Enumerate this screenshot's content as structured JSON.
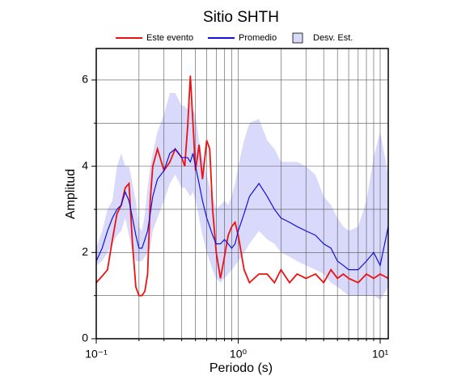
{
  "chart_data": {
    "type": "line",
    "title": "Sitio SHTH",
    "xlabel": "Periodo (s)",
    "ylabel": "Amplitud",
    "xscale": "log",
    "xlim": [
      0.1,
      11.4
    ],
    "ylim": [
      0,
      6.73
    ],
    "xticks": [
      {
        "value": 0.1,
        "label": "10⁻¹"
      },
      {
        "value": 1,
        "label": "10⁰"
      },
      {
        "value": 10,
        "label": "10¹"
      }
    ],
    "minor_xticks": [
      0.2,
      0.3,
      0.4,
      0.5,
      0.6,
      0.7,
      0.8,
      0.9,
      2,
      3,
      4,
      5,
      6,
      7,
      8,
      9
    ],
    "yticks": [
      0,
      2,
      4,
      6
    ],
    "minor_yticks": [
      1,
      3,
      5
    ],
    "grid": true,
    "legend_loc": "top",
    "x": [
      0.1,
      0.11,
      0.12,
      0.13,
      0.14,
      0.15,
      0.16,
      0.17,
      0.18,
      0.19,
      0.2,
      0.21,
      0.22,
      0.23,
      0.24,
      0.25,
      0.27,
      0.3,
      0.33,
      0.36,
      0.4,
      0.42,
      0.44,
      0.46,
      0.48,
      0.5,
      0.53,
      0.56,
      0.6,
      0.63,
      0.66,
      0.7,
      0.75,
      0.8,
      0.85,
      0.9,
      0.95,
      1.0,
      1.1,
      1.2,
      1.4,
      1.6,
      1.8,
      2.0,
      2.3,
      2.6,
      3.0,
      3.5,
      4.0,
      4.5,
      5.0,
      5.5,
      6.0,
      7,
      8,
      9,
      10,
      11.4
    ],
    "band": {
      "name": "Desv. Est.",
      "color": "#d9d9fb",
      "lower": [
        1.7,
        1.8,
        2.0,
        2.2,
        2.4,
        2.5,
        2.8,
        2.4,
        2.0,
        1.8,
        1.8,
        1.8,
        1.9,
        2.0,
        2.1,
        2.5,
        2.8,
        3.2,
        3.6,
        3.8,
        3.5,
        3.5,
        3.4,
        3.3,
        3.4,
        3.2,
        2.8,
        2.4,
        2.0,
        1.8,
        1.6,
        1.4,
        1.3,
        1.4,
        1.5,
        1.6,
        1.7,
        1.8,
        2.0,
        2.2,
        2.5,
        2.3,
        2.2,
        2.0,
        1.9,
        1.8,
        1.7,
        1.6,
        1.5,
        1.3,
        1.2,
        1.1,
        1.0,
        1.0,
        1.0,
        1.0,
        0.9,
        1.2
      ],
      "upper": [
        2.1,
        2.5,
        3.0,
        3.2,
        4.0,
        4.3,
        4.0,
        4.0,
        3.6,
        3.2,
        2.6,
        2.5,
        2.9,
        3.5,
        4.0,
        4.3,
        4.8,
        5.2,
        5.7,
        5.7,
        5.4,
        5.4,
        5.3,
        5.5,
        5.3,
        5.2,
        4.6,
        4.2,
        3.8,
        3.5,
        3.3,
        3.0,
        3.1,
        3.2,
        3.1,
        3.3,
        3.6,
        4.0,
        4.6,
        5.0,
        5.1,
        4.6,
        4.4,
        4.1,
        4.1,
        4.1,
        4.0,
        3.8,
        3.3,
        3.1,
        2.8,
        2.6,
        2.5,
        2.6,
        3.2,
        4.2,
        4.8,
        3.8
      ]
    },
    "series": [
      {
        "name": "Este evento",
        "color": "#ee1111",
        "values": [
          1.3,
          1.45,
          1.6,
          2.3,
          2.9,
          3.1,
          3.5,
          3.6,
          2.2,
          1.2,
          1.0,
          1.0,
          1.1,
          1.5,
          3.2,
          4.0,
          4.4,
          3.9,
          4.1,
          4.4,
          4.2,
          4.0,
          4.9,
          6.1,
          5.0,
          3.9,
          4.5,
          3.7,
          4.6,
          4.4,
          3.0,
          2.0,
          1.4,
          1.9,
          2.4,
          2.6,
          2.7,
          2.4,
          1.6,
          1.3,
          1.5,
          1.5,
          1.3,
          1.6,
          1.3,
          1.5,
          1.4,
          1.5,
          1.3,
          1.6,
          1.4,
          1.5,
          1.4,
          1.3,
          1.5,
          1.4,
          1.5,
          1.4
        ]
      },
      {
        "name": "Promedio",
        "color": "#1111dd",
        "values": [
          1.8,
          2.1,
          2.5,
          2.8,
          3.0,
          3.1,
          3.4,
          3.2,
          2.8,
          2.4,
          2.1,
          2.1,
          2.3,
          2.5,
          2.9,
          3.3,
          3.7,
          3.9,
          4.3,
          4.4,
          4.2,
          4.2,
          4.2,
          4.1,
          4.3,
          4.0,
          3.6,
          3.2,
          2.8,
          2.6,
          2.4,
          2.2,
          2.2,
          2.3,
          2.2,
          2.1,
          2.2,
          2.5,
          2.9,
          3.3,
          3.6,
          3.3,
          3.0,
          2.8,
          2.7,
          2.6,
          2.5,
          2.4,
          2.2,
          2.1,
          1.8,
          1.7,
          1.6,
          1.6,
          1.8,
          2.0,
          1.7,
          2.6
        ]
      }
    ]
  }
}
